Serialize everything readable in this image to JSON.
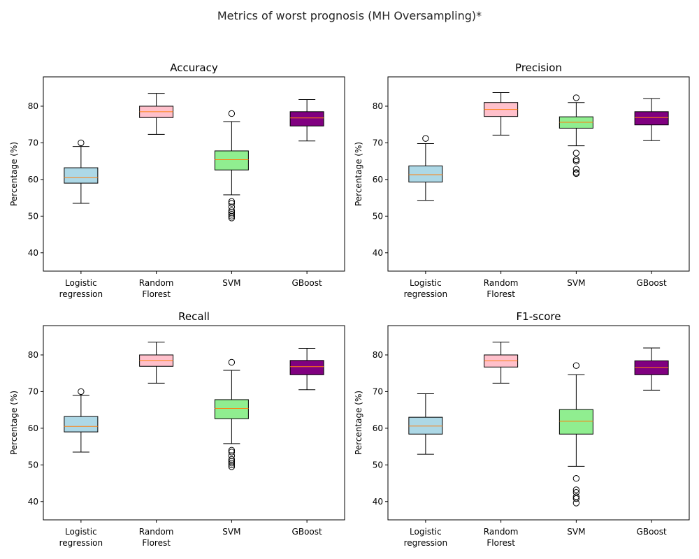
{
  "figure": {
    "suptitle": "Metrics of worst prognosis (MH Oversampling)*"
  },
  "chart_data": [
    {
      "type": "box",
      "title": "Accuracy",
      "ylabel": "Percentage (%)",
      "xlabel": "",
      "ylim": [
        35,
        88
      ],
      "yticks": [
        40,
        50,
        60,
        70,
        80
      ],
      "categories": [
        "Logistic\nregression",
        "Random\nFlorest",
        "SVM",
        "GBoost"
      ],
      "colors": [
        "#add8e6",
        "#ffc0cb",
        "#90ee90",
        "#800080"
      ],
      "boxes": [
        {
          "whislo": 53.5,
          "q1": 59.0,
          "med": 60.5,
          "q3": 63.2,
          "whishi": 69.0,
          "fliers": [
            70.0
          ]
        },
        {
          "whislo": 72.3,
          "q1": 76.9,
          "med": 78.5,
          "q3": 80.0,
          "whishi": 83.5,
          "fliers": []
        },
        {
          "whislo": 55.8,
          "q1": 62.6,
          "med": 65.4,
          "q3": 67.8,
          "whishi": 75.8,
          "fliers": [
            78.0,
            54.0,
            53.5,
            52.5,
            51.5,
            51.0,
            50.5,
            50.0,
            49.5
          ]
        },
        {
          "whislo": 70.5,
          "q1": 74.6,
          "med": 76.8,
          "q3": 78.5,
          "whishi": 81.8,
          "fliers": []
        }
      ]
    },
    {
      "type": "box",
      "title": "Precision",
      "ylabel": "Percentage (%)",
      "xlabel": "",
      "ylim": [
        35,
        88
      ],
      "yticks": [
        40,
        50,
        60,
        70,
        80
      ],
      "categories": [
        "Logistic\nregression",
        "Random\nFlorest",
        "SVM",
        "GBoost"
      ],
      "colors": [
        "#add8e6",
        "#ffc0cb",
        "#90ee90",
        "#800080"
      ],
      "boxes": [
        {
          "whislo": 54.3,
          "q1": 59.3,
          "med": 61.3,
          "q3": 63.7,
          "whishi": 69.8,
          "fliers": [
            71.2
          ]
        },
        {
          "whislo": 72.1,
          "q1": 77.2,
          "med": 79.1,
          "q3": 81.0,
          "whishi": 83.7,
          "fliers": []
        },
        {
          "whislo": 69.2,
          "q1": 74.0,
          "med": 75.6,
          "q3": 77.1,
          "whishi": 81.0,
          "fliers": [
            82.3,
            67.2,
            65.4,
            65.0,
            62.8,
            61.9,
            61.6
          ]
        },
        {
          "whislo": 70.6,
          "q1": 74.9,
          "med": 76.9,
          "q3": 78.5,
          "whishi": 82.1,
          "fliers": []
        }
      ]
    },
    {
      "type": "box",
      "title": "Recall",
      "ylabel": "Percentage (%)",
      "xlabel": "",
      "ylim": [
        35,
        88
      ],
      "yticks": [
        40,
        50,
        60,
        70,
        80
      ],
      "categories": [
        "Logistic\nregression",
        "Random\nFlorest",
        "SVM",
        "GBoost"
      ],
      "colors": [
        "#add8e6",
        "#ffc0cb",
        "#90ee90",
        "#800080"
      ],
      "boxes": [
        {
          "whislo": 53.5,
          "q1": 59.0,
          "med": 60.5,
          "q3": 63.2,
          "whishi": 69.0,
          "fliers": [
            70.0
          ]
        },
        {
          "whislo": 72.3,
          "q1": 76.9,
          "med": 78.5,
          "q3": 80.0,
          "whishi": 83.5,
          "fliers": []
        },
        {
          "whislo": 55.8,
          "q1": 62.6,
          "med": 65.4,
          "q3": 67.8,
          "whishi": 75.8,
          "fliers": [
            78.0,
            54.0,
            53.5,
            52.5,
            51.5,
            51.0,
            50.5,
            50.0,
            49.5
          ]
        },
        {
          "whislo": 70.5,
          "q1": 74.6,
          "med": 76.8,
          "q3": 78.5,
          "whishi": 81.8,
          "fliers": []
        }
      ]
    },
    {
      "type": "box",
      "title": "F1-score",
      "ylabel": "Percentage (%)",
      "xlabel": "",
      "ylim": [
        35,
        88
      ],
      "yticks": [
        40,
        50,
        60,
        70,
        80
      ],
      "categories": [
        "Logistic\nregression",
        "Random\nFlorest",
        "SVM",
        "GBoost"
      ],
      "colors": [
        "#add8e6",
        "#ffc0cb",
        "#90ee90",
        "#800080"
      ],
      "boxes": [
        {
          "whislo": 52.9,
          "q1": 58.4,
          "med": 60.6,
          "q3": 63.0,
          "whishi": 69.4,
          "fliers": []
        },
        {
          "whislo": 72.3,
          "q1": 76.7,
          "med": 78.4,
          "q3": 80.0,
          "whishi": 83.5,
          "fliers": []
        },
        {
          "whislo": 49.6,
          "q1": 58.4,
          "med": 61.9,
          "q3": 65.1,
          "whishi": 74.6,
          "fliers": [
            77.1,
            46.3,
            43.2,
            42.5,
            41.3,
            40.8,
            39.6
          ]
        },
        {
          "whislo": 70.4,
          "q1": 74.6,
          "med": 76.6,
          "q3": 78.4,
          "whishi": 81.9,
          "fliers": []
        }
      ]
    }
  ]
}
